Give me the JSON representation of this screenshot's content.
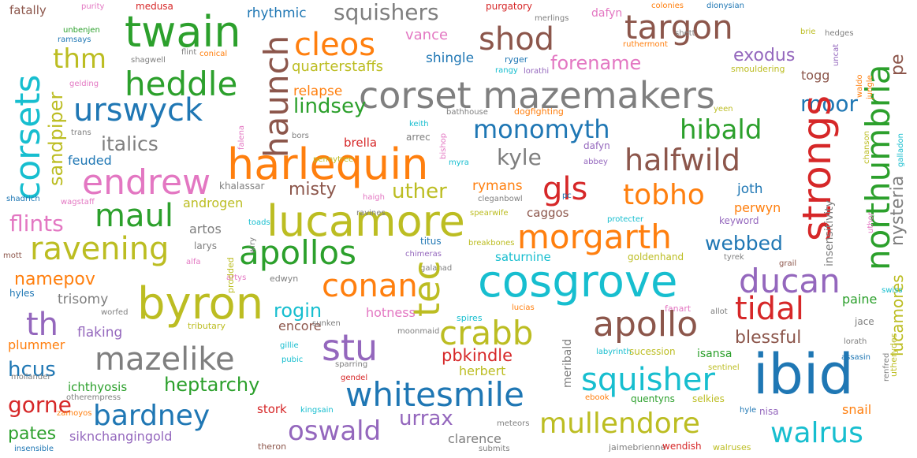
{
  "words": [
    {
      "text": "fatally",
      "color": "#8c564b"
    },
    {
      "text": "purity",
      "color": "#e377c2"
    },
    {
      "text": "medusa",
      "color": "#d62728"
    },
    {
      "text": "squishers",
      "color": "#7f7f7f"
    },
    {
      "text": "rhythmic",
      "color": "#1f77b4"
    },
    {
      "text": "purgatory",
      "color": "#d62728"
    },
    {
      "text": "merlings",
      "color": "#7f7f7f"
    },
    {
      "text": "dafyn",
      "color": "#e377c2"
    },
    {
      "text": "colonies",
      "color": "#ff7f0e"
    },
    {
      "text": "dionysian",
      "color": "#1f77b4"
    },
    {
      "text": "twain",
      "color": "#2ca02c"
    },
    {
      "text": "targon",
      "color": "#8c564b"
    },
    {
      "text": "shod",
      "color": "#8c564b"
    },
    {
      "text": "cleos",
      "color": "#ff7f0e"
    },
    {
      "text": "vance",
      "color": "#e377c2"
    },
    {
      "text": "moor",
      "color": "#1f77b4"
    },
    {
      "text": "northumbria",
      "color": "#2ca02c"
    },
    {
      "text": "pe",
      "color": "#8c564b"
    },
    {
      "text": "corsets",
      "color": "#17becf"
    },
    {
      "text": "unbenjen",
      "color": "#2ca02c"
    },
    {
      "text": "ramsays",
      "color": "#1f77b4"
    },
    {
      "text": "shagwell",
      "color": "#7f7f7f"
    },
    {
      "text": "flint",
      "color": "#7f7f7f"
    },
    {
      "text": "conical",
      "color": "#ff7f0e"
    },
    {
      "text": "thm",
      "color": "#bcbd22"
    },
    {
      "text": "quarterstaffs",
      "color": "#bcbd22"
    },
    {
      "text": "shingle",
      "color": "#1f77b4"
    },
    {
      "text": "ryger",
      "color": "#1f77b4"
    },
    {
      "text": "rangy",
      "color": "#17becf"
    },
    {
      "text": "forename",
      "color": "#e377c2"
    },
    {
      "text": "shett",
      "color": "#7f7f7f"
    },
    {
      "text": "ruthermont",
      "color": "#ff7f0e"
    },
    {
      "text": "brie",
      "color": "#bcbd22"
    },
    {
      "text": "hedges",
      "color": "#7f7f7f"
    },
    {
      "text": "exodus",
      "color": "#9467bd"
    },
    {
      "text": "heddle",
      "color": "#2ca02c"
    },
    {
      "text": "corset mazemakers",
      "color": "#7f7f7f"
    },
    {
      "text": "lorathi",
      "color": "#9467bd"
    },
    {
      "text": "smouldering",
      "color": "#bcbd22"
    },
    {
      "text": "togg",
      "color": "#8c564b"
    },
    {
      "text": "urswyck",
      "color": "#1f77b4"
    },
    {
      "text": "gelding",
      "color": "#e377c2"
    },
    {
      "text": "relapse",
      "color": "#ff7f0e"
    },
    {
      "text": "haunch",
      "color": "#8c564b"
    },
    {
      "text": "lindsey",
      "color": "#2ca02c"
    },
    {
      "text": "bathhouse",
      "color": "#7f7f7f"
    },
    {
      "text": "dogfighting",
      "color": "#ff7f0e"
    },
    {
      "text": "yeen",
      "color": "#bcbd22"
    },
    {
      "text": "strongs",
      "color": "#d62728"
    },
    {
      "text": "sandpiper",
      "color": "#bcbd22"
    },
    {
      "text": "monomyth",
      "color": "#1f77b4"
    },
    {
      "text": "hibald",
      "color": "#2ca02c"
    },
    {
      "text": "italics",
      "color": "#7f7f7f"
    },
    {
      "text": "trans",
      "color": "#7f7f7f"
    },
    {
      "text": "keith",
      "color": "#17becf"
    },
    {
      "text": "bors",
      "color": "#7f7f7f"
    },
    {
      "text": "arrec",
      "color": "#7f7f7f"
    },
    {
      "text": "bishop",
      "color": "#e377c2"
    },
    {
      "text": "brella",
      "color": "#d62728"
    },
    {
      "text": "harlequin",
      "color": "#ff7f0e"
    },
    {
      "text": "halfwild",
      "color": "#8c564b"
    },
    {
      "text": "feuded",
      "color": "#1f77b4"
    },
    {
      "text": "kyle",
      "color": "#7f7f7f"
    },
    {
      "text": "myra",
      "color": "#17becf"
    },
    {
      "text": "pennytree",
      "color": "#bcbd22"
    },
    {
      "text": "dafyn",
      "color": "#9467bd"
    },
    {
      "text": "abbey",
      "color": "#9467bd"
    },
    {
      "text": "endrew",
      "color": "#e377c2"
    },
    {
      "text": "khalassar",
      "color": "#7f7f7f"
    },
    {
      "text": "misty",
      "color": "#8c564b"
    },
    {
      "text": "uther",
      "color": "#bcbd22"
    },
    {
      "text": "gls",
      "color": "#d62728"
    },
    {
      "text": "tobho",
      "color": "#ff7f0e"
    },
    {
      "text": "joth",
      "color": "#1f77b4"
    },
    {
      "text": "nysteria",
      "color": "#7f7f7f"
    },
    {
      "text": "lucamores",
      "color": "#bcbd22"
    },
    {
      "text": "shadrich",
      "color": "#1f77b4"
    },
    {
      "text": "wagstaff",
      "color": "#e377c2"
    },
    {
      "text": "haigh",
      "color": "#e377c2"
    },
    {
      "text": "cleganbowl",
      "color": "#7f7f7f"
    },
    {
      "text": "pc",
      "color": "#1f77b4"
    },
    {
      "text": "maul",
      "color": "#2ca02c"
    },
    {
      "text": "androgen",
      "color": "#bcbd22"
    },
    {
      "text": "rymans",
      "color": "#ff7f0e"
    },
    {
      "text": "perwyn",
      "color": "#ff7f0e"
    },
    {
      "text": "lucamore",
      "color": "#bcbd22"
    },
    {
      "text": "ravines",
      "color": "#7f7f7f"
    },
    {
      "text": "caggos",
      "color": "#8c564b"
    },
    {
      "text": "spearwife",
      "color": "#bcbd22"
    },
    {
      "text": "flints",
      "color": "#e377c2"
    },
    {
      "text": "artos",
      "color": "#7f7f7f"
    },
    {
      "text": "toads",
      "color": "#17becf"
    },
    {
      "text": "protecter",
      "color": "#17becf"
    },
    {
      "text": "keyword",
      "color": "#9467bd"
    },
    {
      "text": "morgarth",
      "color": "#ff7f0e"
    },
    {
      "text": "webbed",
      "color": "#1f77b4"
    },
    {
      "text": "insensitivity",
      "color": "#7f7f7f"
    },
    {
      "text": "ravening",
      "color": "#bcbd22"
    },
    {
      "text": "apollos",
      "color": "#2ca02c"
    },
    {
      "text": "titus",
      "color": "#1f77b4"
    },
    {
      "text": "breakbones",
      "color": "#bcbd22"
    },
    {
      "text": "mott",
      "color": "#8c564b"
    },
    {
      "text": "larys",
      "color": "#7f7f7f"
    },
    {
      "text": "chimeras",
      "color": "#9467bd"
    },
    {
      "text": "saturnine",
      "color": "#17becf"
    },
    {
      "text": "goldenhand",
      "color": "#bcbd22"
    },
    {
      "text": "tyrek",
      "color": "#7f7f7f"
    },
    {
      "text": "grail",
      "color": "#8c564b"
    },
    {
      "text": "namepov",
      "color": "#ff7f0e"
    },
    {
      "text": "alfa",
      "color": "#e377c2"
    },
    {
      "text": "galahad",
      "color": "#7f7f7f"
    },
    {
      "text": "conan",
      "color": "#ff7f0e"
    },
    {
      "text": "cosgrove",
      "color": "#17becf"
    },
    {
      "text": "ducan",
      "color": "#9467bd"
    },
    {
      "text": "swiss",
      "color": "#17becf"
    },
    {
      "text": "hyles",
      "color": "#1f77b4"
    },
    {
      "text": "artys",
      "color": "#e377c2"
    },
    {
      "text": "edwyn",
      "color": "#7f7f7f"
    },
    {
      "text": "trisomy",
      "color": "#7f7f7f"
    },
    {
      "text": "byron",
      "color": "#bcbd22"
    },
    {
      "text": "rogin",
      "color": "#17becf"
    },
    {
      "text": "tec",
      "color": "#bcbd22"
    },
    {
      "text": "tidal",
      "color": "#d62728"
    },
    {
      "text": "paine",
      "color": "#2ca02c"
    },
    {
      "text": "th",
      "color": "#9467bd"
    },
    {
      "text": "worfed",
      "color": "#7f7f7f"
    },
    {
      "text": "hotness",
      "color": "#e377c2"
    },
    {
      "text": "lucias",
      "color": "#ff7f0e"
    },
    {
      "text": "fanart",
      "color": "#e377c2"
    },
    {
      "text": "allot",
      "color": "#7f7f7f"
    },
    {
      "text": "flaking",
      "color": "#9467bd"
    },
    {
      "text": "tributary",
      "color": "#bcbd22"
    },
    {
      "text": "encore",
      "color": "#8c564b"
    },
    {
      "text": "sunken",
      "color": "#7f7f7f"
    },
    {
      "text": "spires",
      "color": "#17becf"
    },
    {
      "text": "crabb",
      "color": "#bcbd22"
    },
    {
      "text": "apollo",
      "color": "#8c564b"
    },
    {
      "text": "jace",
      "color": "#7f7f7f"
    },
    {
      "text": "plummer",
      "color": "#ff7f0e"
    },
    {
      "text": "stu",
      "color": "#9467bd"
    },
    {
      "text": "moonmaid",
      "color": "#7f7f7f"
    },
    {
      "text": "blessful",
      "color": "#8c564b"
    },
    {
      "text": "lorath",
      "color": "#7f7f7f"
    },
    {
      "text": "hcus",
      "color": "#1f77b4"
    },
    {
      "text": "mazelike",
      "color": "#7f7f7f"
    },
    {
      "text": "gillie",
      "color": "#17becf"
    },
    {
      "text": "pubic",
      "color": "#17becf"
    },
    {
      "text": "pbkindle",
      "color": "#d62728"
    },
    {
      "text": "labyrinth",
      "color": "#17becf"
    },
    {
      "text": "sucession",
      "color": "#bcbd22"
    },
    {
      "text": "isansa",
      "color": "#2ca02c"
    },
    {
      "text": "assasin",
      "color": "#1f77b4"
    },
    {
      "text": "mollander",
      "color": "#7f7f7f"
    },
    {
      "text": "heptarchy",
      "color": "#2ca02c"
    },
    {
      "text": "sparring",
      "color": "#7f7f7f"
    },
    {
      "text": "herbert",
      "color": "#bcbd22"
    },
    {
      "text": "meribald",
      "color": "#7f7f7f"
    },
    {
      "text": "sentinel",
      "color": "#bcbd22"
    },
    {
      "text": "ibid",
      "color": "#1f77b4"
    },
    {
      "text": "renfred",
      "color": "#7f7f7f"
    },
    {
      "text": "ichthyosis",
      "color": "#2ca02c"
    },
    {
      "text": "gendel",
      "color": "#d62728"
    },
    {
      "text": "squisher",
      "color": "#17becf"
    },
    {
      "text": "otherempress",
      "color": "#7f7f7f"
    },
    {
      "text": "whitesmile",
      "color": "#1f77b4"
    },
    {
      "text": "selkies",
      "color": "#bcbd22"
    },
    {
      "text": "ebook",
      "color": "#ff7f0e"
    },
    {
      "text": "quentyns",
      "color": "#2ca02c"
    },
    {
      "text": "gorne",
      "color": "#d62728"
    },
    {
      "text": "zamoyos",
      "color": "#ff7f0e"
    },
    {
      "text": "bardney",
      "color": "#1f77b4"
    },
    {
      "text": "stork",
      "color": "#d62728"
    },
    {
      "text": "kingsain",
      "color": "#17becf"
    },
    {
      "text": "urrax",
      "color": "#9467bd"
    },
    {
      "text": "hyle",
      "color": "#1f77b4"
    },
    {
      "text": "nisa",
      "color": "#9467bd"
    },
    {
      "text": "snail",
      "color": "#ff7f0e"
    },
    {
      "text": "pates",
      "color": "#2ca02c"
    },
    {
      "text": "siknchangingold",
      "color": "#9467bd"
    },
    {
      "text": "oswald",
      "color": "#9467bd"
    },
    {
      "text": "clarence",
      "color": "#7f7f7f"
    },
    {
      "text": "meteors",
      "color": "#7f7f7f"
    },
    {
      "text": "mullendore",
      "color": "#bcbd22"
    },
    {
      "text": "walrus",
      "color": "#17becf"
    },
    {
      "text": "insensible",
      "color": "#1f77b4"
    },
    {
      "text": "theron",
      "color": "#8c564b"
    },
    {
      "text": "submits",
      "color": "#7f7f7f"
    },
    {
      "text": "jaimebrienne",
      "color": "#7f7f7f"
    },
    {
      "text": "wendish",
      "color": "#d62728"
    },
    {
      "text": "walruses",
      "color": "#bcbd22"
    },
    {
      "text": "waldo",
      "color": "#ff7f0e"
    },
    {
      "text": "jungle",
      "color": "#ff7f0e"
    },
    {
      "text": "galladon",
      "color": "#17becf"
    },
    {
      "text": "chanson",
      "color": "#bcbd22"
    },
    {
      "text": "uncat",
      "color": "#9467bd"
    },
    {
      "text": "utherydes",
      "color": "#bcbd22"
    },
    {
      "text": "falena",
      "color": "#e377c2"
    },
    {
      "text": "uthor",
      "color": "#e377c2"
    },
    {
      "text": "prodded",
      "color": "#bcbd22"
    },
    {
      "text": "wiry",
      "color": "#7f7f7f"
    }
  ]
}
